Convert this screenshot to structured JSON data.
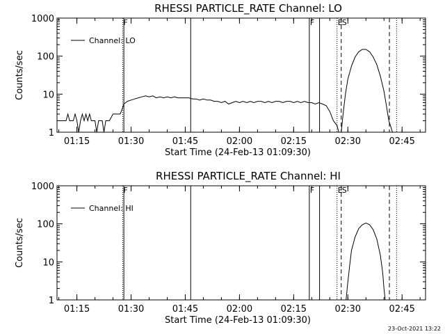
{
  "chart_data": [
    {
      "type": "line",
      "title": "RHESSI PARTICLE_RATE Channel: LO",
      "xlabel": "Start Time (24-Feb-13 01:09:30)",
      "ylabel": "Counts/sec",
      "yscale": "log",
      "ylim": [
        1,
        1000
      ],
      "xlim": [
        "01:09:30",
        "02:51:30"
      ],
      "x_ticks": [
        "01:15",
        "01:30",
        "01:45",
        "02:00",
        "02:15",
        "02:30",
        "02:45"
      ],
      "y_ticks": [
        "1",
        "10",
        "100",
        "1000"
      ],
      "legend": "Channel: LO",
      "legend_position": "top-left",
      "event_markers": [
        {
          "label": "F",
          "time": "01:27:40",
          "style": "dotted"
        },
        {
          "label": "F",
          "time": "02:19:20",
          "style": "solid"
        },
        {
          "label": "E",
          "time": "02:27:00",
          "style": "dotted"
        },
        {
          "label": "S",
          "time": "02:28:10",
          "style": "dashed"
        },
        {
          "label": "",
          "time": "02:41:30",
          "style": "dashed"
        },
        {
          "label": "",
          "time": "02:43:30",
          "style": "dotted"
        }
      ],
      "vertical_lines": [
        "01:28:00",
        "01:46:30",
        "02:22:10"
      ],
      "series": [
        {
          "name": "Channel: LO",
          "points": [
            [
              "01:09:30",
              2
            ],
            [
              "01:11:00",
              2
            ],
            [
              "01:12:00",
              2
            ],
            [
              "01:12:30",
              3
            ],
            [
              "01:13:00",
              2
            ],
            [
              "01:14:00",
              2
            ],
            [
              "01:14:30",
              3
            ],
            [
              "01:15:00",
              2
            ],
            [
              "01:15:30",
              1
            ],
            [
              "01:16:00",
              2
            ],
            [
              "01:16:30",
              3
            ],
            [
              "01:17:00",
              2
            ],
            [
              "01:17:30",
              3
            ],
            [
              "01:18:00",
              2
            ],
            [
              "01:18:30",
              3
            ],
            [
              "01:19:00",
              2
            ],
            [
              "01:20:00",
              2
            ],
            [
              "01:20:30",
              1
            ],
            [
              "01:21:00",
              2
            ],
            [
              "01:22:00",
              2
            ],
            [
              "01:22:30",
              1
            ],
            [
              "01:23:00",
              2
            ],
            [
              "01:24:00",
              2
            ],
            [
              "01:25:00",
              3
            ],
            [
              "01:26:00",
              3
            ],
            [
              "01:27:00",
              3
            ],
            [
              "01:27:30",
              4
            ],
            [
              "01:28:00",
              5.5
            ],
            [
              "01:29:00",
              6.5
            ],
            [
              "01:30:00",
              7
            ],
            [
              "01:31:00",
              7.5
            ],
            [
              "01:32:00",
              8
            ],
            [
              "01:33:00",
              8.5
            ],
            [
              "01:34:00",
              9
            ],
            [
              "01:35:00",
              8.5
            ],
            [
              "01:36:00",
              9
            ],
            [
              "01:37:00",
              8
            ],
            [
              "01:38:00",
              8.5
            ],
            [
              "01:39:00",
              8
            ],
            [
              "01:40:00",
              8.5
            ],
            [
              "01:41:00",
              8
            ],
            [
              "01:42:00",
              8.5
            ],
            [
              "01:43:00",
              8
            ],
            [
              "01:44:00",
              8
            ],
            [
              "01:45:00",
              8
            ],
            [
              "01:46:00",
              8
            ],
            [
              "01:47:00",
              7.5
            ],
            [
              "01:48:00",
              7.5
            ],
            [
              "01:49:00",
              7
            ],
            [
              "01:50:00",
              7.5
            ],
            [
              "01:51:00",
              7
            ],
            [
              "01:52:00",
              7
            ],
            [
              "01:53:00",
              6.5
            ],
            [
              "01:54:00",
              6.5
            ],
            [
              "01:55:00",
              6
            ],
            [
              "01:56:00",
              6.5
            ],
            [
              "01:57:00",
              5.5
            ],
            [
              "01:58:00",
              6
            ],
            [
              "01:59:00",
              6.5
            ],
            [
              "02:00:00",
              6
            ],
            [
              "02:01:00",
              6.5
            ],
            [
              "02:02:00",
              6
            ],
            [
              "02:03:00",
              6.5
            ],
            [
              "02:04:00",
              6
            ],
            [
              "02:05:00",
              6.5
            ],
            [
              "02:06:00",
              6.5
            ],
            [
              "02:07:00",
              6
            ],
            [
              "02:08:00",
              6.5
            ],
            [
              "02:09:00",
              6
            ],
            [
              "02:10:00",
              6.5
            ],
            [
              "02:11:00",
              6.5
            ],
            [
              "02:12:00",
              6
            ],
            [
              "02:13:00",
              6.5
            ],
            [
              "02:14:00",
              6.5
            ],
            [
              "02:15:00",
              6
            ],
            [
              "02:16:00",
              6.5
            ],
            [
              "02:17:00",
              6
            ],
            [
              "02:18:00",
              6.5
            ],
            [
              "02:19:00",
              6
            ],
            [
              "02:20:00",
              6
            ],
            [
              "02:21:00",
              5.5
            ],
            [
              "02:22:00",
              6
            ],
            [
              "02:23:00",
              5.5
            ],
            [
              "02:24:00",
              5
            ],
            [
              "02:25:00",
              3.5
            ],
            [
              "02:26:00",
              2
            ],
            [
              "02:27:00",
              1.5
            ],
            [
              "02:27:30",
              1
            ]
          ]
        }
      ],
      "peak": {
        "name": "Channel: LO",
        "points": [
          [
            "02:28:10",
            1
          ],
          [
            "02:28:40",
            3
          ],
          [
            "02:29:20",
            10
          ],
          [
            "02:30:00",
            25
          ],
          [
            "02:31:00",
            55
          ],
          [
            "02:32:00",
            95
          ],
          [
            "02:33:00",
            130
          ],
          [
            "02:34:00",
            150
          ],
          [
            "02:35:00",
            150
          ],
          [
            "02:36:00",
            130
          ],
          [
            "02:37:00",
            95
          ],
          [
            "02:38:00",
            60
          ],
          [
            "02:39:00",
            30
          ],
          [
            "02:40:00",
            12
          ],
          [
            "02:40:40",
            5
          ],
          [
            "02:41:20",
            2
          ],
          [
            "02:42:00",
            1.3
          ],
          [
            "02:42:20",
            1
          ]
        ]
      }
    },
    {
      "type": "line",
      "title": "RHESSI PARTICLE_RATE Channel: HI",
      "xlabel": "Start Time (24-Feb-13 01:09:30)",
      "ylabel": "Counts/sec",
      "yscale": "log",
      "ylim": [
        1,
        1000
      ],
      "xlim": [
        "01:09:30",
        "02:51:30"
      ],
      "x_ticks": [
        "01:15",
        "01:30",
        "01:45",
        "02:00",
        "02:15",
        "02:30",
        "02:45"
      ],
      "y_ticks": [
        "1",
        "10",
        "100",
        "1000"
      ],
      "legend": "Channel: HI",
      "legend_position": "top-left",
      "event_markers": [
        {
          "label": "F",
          "time": "01:27:40",
          "style": "dotted"
        },
        {
          "label": "F",
          "time": "02:19:20",
          "style": "solid"
        },
        {
          "label": "E",
          "time": "02:27:00",
          "style": "dotted"
        },
        {
          "label": "S",
          "time": "02:28:10",
          "style": "dashed"
        },
        {
          "label": "",
          "time": "02:41:30",
          "style": "dashed"
        },
        {
          "label": "",
          "time": "02:43:30",
          "style": "dotted"
        }
      ],
      "vertical_lines": [
        "01:28:00",
        "01:46:30",
        "02:22:10"
      ],
      "series": [
        {
          "name": "Channel: HI",
          "points": [
            [
              "02:29:30",
              1
            ],
            [
              "02:30:00",
              3
            ],
            [
              "02:30:30",
              8
            ],
            [
              "02:31:00",
              20
            ],
            [
              "02:32:00",
              45
            ],
            [
              "02:33:00",
              75
            ],
            [
              "02:34:00",
              95
            ],
            [
              "02:35:00",
              105
            ],
            [
              "02:36:00",
              95
            ],
            [
              "02:37:00",
              70
            ],
            [
              "02:38:00",
              40
            ],
            [
              "02:39:00",
              15
            ],
            [
              "02:39:40",
              5
            ],
            [
              "02:40:00",
              2
            ],
            [
              "02:40:20",
              1
            ]
          ]
        }
      ]
    }
  ],
  "timestamp": "23-Oct-2021 13:22"
}
